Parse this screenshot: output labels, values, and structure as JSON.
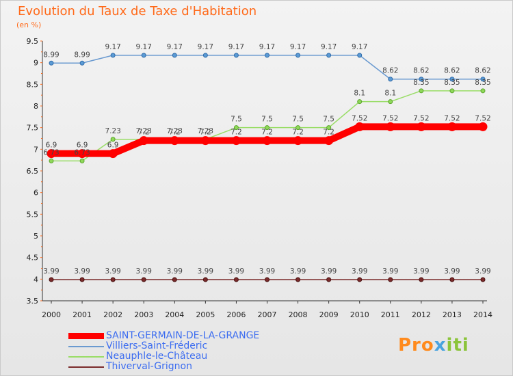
{
  "title": "Evolution du Taux de Taxe d'Habitation",
  "subtitle": "(en %)",
  "brand": "Proxiti",
  "chart_data": {
    "type": "line",
    "x": [
      "2000",
      "2001",
      "2002",
      "2003",
      "2004",
      "2005",
      "2006",
      "2007",
      "2008",
      "2009",
      "2010",
      "2011",
      "2012",
      "2013",
      "2014"
    ],
    "ylim": [
      3.5,
      9.5
    ],
    "yticks": [
      "3.5",
      "4",
      "4.5",
      "5",
      "5.5",
      "6",
      "6.5",
      "7",
      "7.5",
      "8",
      "8.5",
      "9",
      "9.5"
    ],
    "grid": false,
    "legend_position": "bottom-left",
    "series": [
      {
        "name": "SAINT-GERMAIN-DE-LA-GRANGE",
        "color": "#ff0000",
        "values": [
          6.9,
          6.9,
          6.9,
          7.2,
          7.2,
          7.2,
          7.2,
          7.2,
          7.2,
          7.2,
          7.52,
          7.52,
          7.52,
          7.52,
          7.52
        ],
        "labels": [
          "6.9",
          "6.9",
          "6.9",
          "7.2",
          "7.2",
          "7.2",
          "7.2",
          "7.2",
          "7.2",
          "7.2",
          "7.52",
          "7.52",
          "7.52",
          "7.52",
          "7.52"
        ]
      },
      {
        "name": "Villiers-Saint-Fréderic",
        "color": "#6a9ad0",
        "values": [
          8.99,
          8.99,
          9.17,
          9.17,
          9.17,
          9.17,
          9.17,
          9.17,
          9.17,
          9.17,
          9.17,
          8.62,
          8.62,
          8.62,
          8.62
        ],
        "labels": [
          "8.99",
          "8.99",
          "9.17",
          "9.17",
          "9.17",
          "9.17",
          "9.17",
          "9.17",
          "9.17",
          "9.17",
          "9.17",
          "8.62",
          "8.62",
          "8.62",
          "8.62"
        ]
      },
      {
        "name": "Neauphle-le-Château",
        "color": "#99dd66",
        "values": [
          6.73,
          6.73,
          7.23,
          7.23,
          7.23,
          7.23,
          7.5,
          7.5,
          7.5,
          7.5,
          8.1,
          8.1,
          8.35,
          8.35,
          8.35
        ],
        "labels": [
          "6.73",
          "6.73",
          "7.23",
          "7.23",
          "7.23",
          "7.23",
          "7.5",
          "7.5",
          "7.5",
          "7.5",
          "8.1",
          "8.1",
          "8.35",
          "8.35",
          "8.35"
        ]
      },
      {
        "name": "Thiverval-Grignon",
        "color": "#7a2a2a",
        "values": [
          3.99,
          3.99,
          3.99,
          3.99,
          3.99,
          3.99,
          3.99,
          3.99,
          3.99,
          3.99,
          3.99,
          3.99,
          3.99,
          3.99,
          3.99
        ],
        "labels": [
          "3.99",
          "3.99",
          "3.99",
          "3.99",
          "3.99",
          "3.99",
          "3.99",
          "3.99",
          "3.99",
          "3.99",
          "3.99",
          "3.99",
          "3.99",
          "3.99",
          "3.99"
        ]
      }
    ]
  }
}
